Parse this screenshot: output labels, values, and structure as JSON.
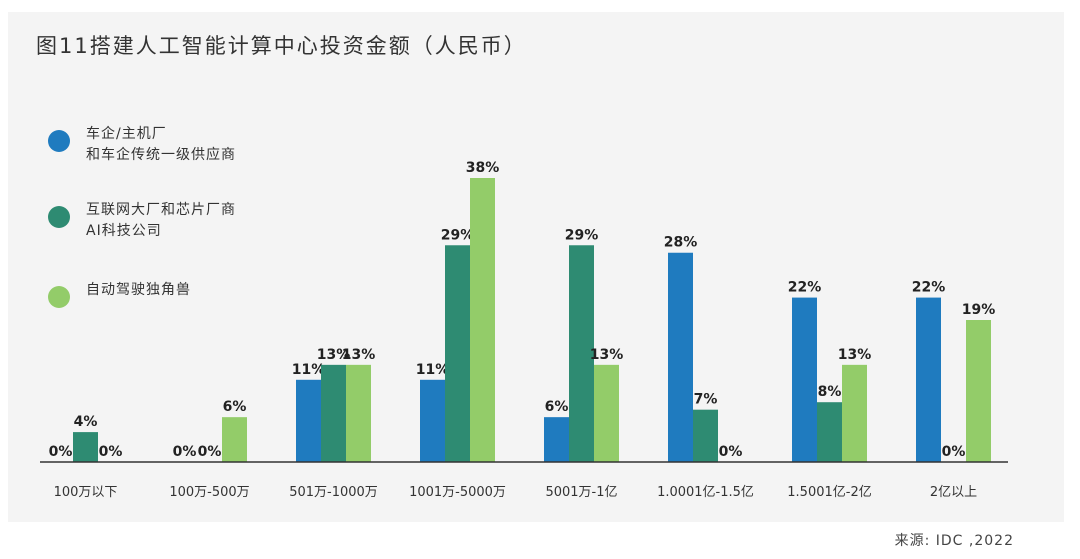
{
  "chart_data": {
    "type": "bar",
    "title": "图11搭建人工智能计算中心投资金额（人民币）",
    "categories": [
      "100万以下",
      "100万-500万",
      "501万-1000万",
      "1001万-5000万",
      "5001万-1亿",
      "1.0001亿-1.5亿",
      "1.5001亿-2亿",
      "2亿以上"
    ],
    "series": [
      {
        "name_lines": [
          "车企/主机厂",
          "和车企传统一级供应商"
        ],
        "color": "#1f7bbf",
        "values": [
          0,
          0,
          11,
          11,
          6,
          28,
          22,
          22
        ]
      },
      {
        "name_lines": [
          "互联网大厂和芯片厂商",
          "AI科技公司"
        ],
        "color": "#2e8b72",
        "values": [
          4,
          0,
          13,
          29,
          29,
          7,
          8,
          0
        ]
      },
      {
        "name_lines": [
          "自动驾驶独角兽"
        ],
        "color": "#93cc69",
        "values": [
          0,
          6,
          13,
          38,
          13,
          0,
          13,
          19
        ]
      }
    ],
    "value_suffix": "%",
    "ylim": [
      0,
      38
    ],
    "legend_position": "left",
    "grid": false
  },
  "source": "来源: IDC ,2022"
}
